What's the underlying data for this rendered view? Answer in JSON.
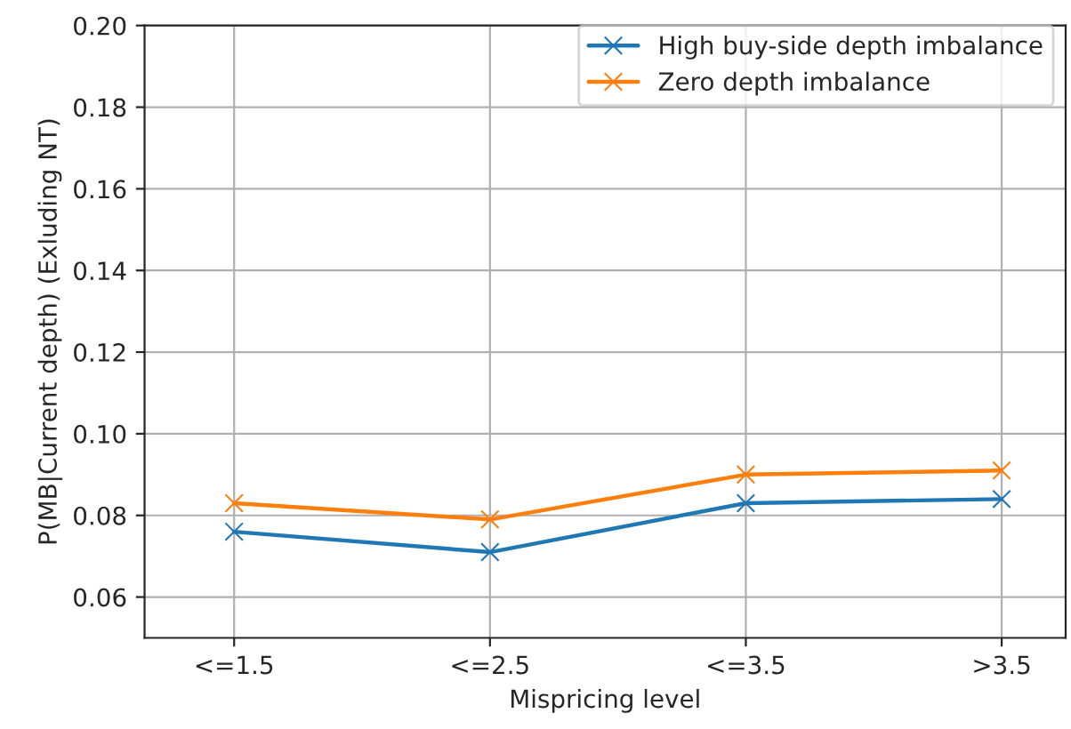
{
  "chart_data": {
    "type": "line",
    "xlabel": "Mispricing level",
    "ylabel": "P(MB|Current depth) (Exluding NT)",
    "categories": [
      "<=1.5",
      "<=2.5",
      "<=3.5",
      ">3.5"
    ],
    "series": [
      {
        "name": "High buy-side depth imbalance",
        "color": "#1f77b4",
        "marker": "cross",
        "values": [
          0.076,
          0.071,
          0.083,
          0.084
        ]
      },
      {
        "name": "Zero depth imbalance",
        "color": "#ff7f0e",
        "marker": "cross",
        "values": [
          0.083,
          0.079,
          0.09,
          0.091
        ]
      }
    ],
    "ylim": [
      0.05,
      0.2
    ],
    "yticks": [
      0.06,
      0.08,
      {
        "value": 0.1,
        "label": "0.10"
      },
      0.12,
      0.14,
      0.16,
      0.18,
      {
        "value": 0.2,
        "label": "0.20"
      }
    ],
    "grid": true,
    "legend": "top right",
    "line_style": "solid"
  }
}
